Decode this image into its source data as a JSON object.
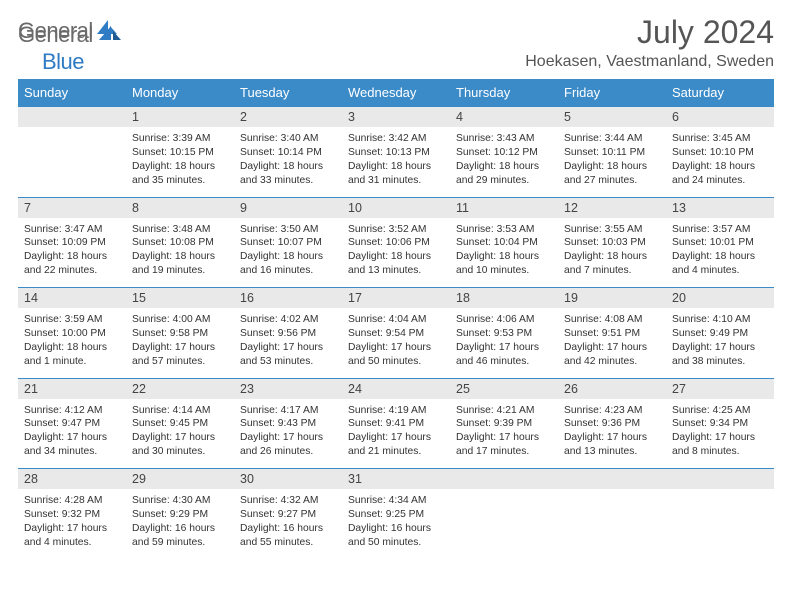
{
  "logo": {
    "general": "General",
    "blue": "Blue"
  },
  "title": "July 2024",
  "location": "Hoekasen, Vaestmanland, Sweden",
  "day_headers": [
    "Sunday",
    "Monday",
    "Tuesday",
    "Wednesday",
    "Thursday",
    "Friday",
    "Saturday"
  ],
  "colors": {
    "header_bg": "#3b8bc9",
    "header_text": "#ffffff",
    "daynum_bg": "#e9e9e9",
    "rule": "#3b8bc9",
    "logo_gray": "#6a6a6a",
    "logo_blue": "#2f7bc4",
    "title_color": "#555555",
    "body_text": "#333333"
  },
  "weeks": [
    [
      null,
      {
        "n": "1",
        "sunrise": "Sunrise: 3:39 AM",
        "sunset": "Sunset: 10:15 PM",
        "daylight": "Daylight: 18 hours and 35 minutes."
      },
      {
        "n": "2",
        "sunrise": "Sunrise: 3:40 AM",
        "sunset": "Sunset: 10:14 PM",
        "daylight": "Daylight: 18 hours and 33 minutes."
      },
      {
        "n": "3",
        "sunrise": "Sunrise: 3:42 AM",
        "sunset": "Sunset: 10:13 PM",
        "daylight": "Daylight: 18 hours and 31 minutes."
      },
      {
        "n": "4",
        "sunrise": "Sunrise: 3:43 AM",
        "sunset": "Sunset: 10:12 PM",
        "daylight": "Daylight: 18 hours and 29 minutes."
      },
      {
        "n": "5",
        "sunrise": "Sunrise: 3:44 AM",
        "sunset": "Sunset: 10:11 PM",
        "daylight": "Daylight: 18 hours and 27 minutes."
      },
      {
        "n": "6",
        "sunrise": "Sunrise: 3:45 AM",
        "sunset": "Sunset: 10:10 PM",
        "daylight": "Daylight: 18 hours and 24 minutes."
      }
    ],
    [
      {
        "n": "7",
        "sunrise": "Sunrise: 3:47 AM",
        "sunset": "Sunset: 10:09 PM",
        "daylight": "Daylight: 18 hours and 22 minutes."
      },
      {
        "n": "8",
        "sunrise": "Sunrise: 3:48 AM",
        "sunset": "Sunset: 10:08 PM",
        "daylight": "Daylight: 18 hours and 19 minutes."
      },
      {
        "n": "9",
        "sunrise": "Sunrise: 3:50 AM",
        "sunset": "Sunset: 10:07 PM",
        "daylight": "Daylight: 18 hours and 16 minutes."
      },
      {
        "n": "10",
        "sunrise": "Sunrise: 3:52 AM",
        "sunset": "Sunset: 10:06 PM",
        "daylight": "Daylight: 18 hours and 13 minutes."
      },
      {
        "n": "11",
        "sunrise": "Sunrise: 3:53 AM",
        "sunset": "Sunset: 10:04 PM",
        "daylight": "Daylight: 18 hours and 10 minutes."
      },
      {
        "n": "12",
        "sunrise": "Sunrise: 3:55 AM",
        "sunset": "Sunset: 10:03 PM",
        "daylight": "Daylight: 18 hours and 7 minutes."
      },
      {
        "n": "13",
        "sunrise": "Sunrise: 3:57 AM",
        "sunset": "Sunset: 10:01 PM",
        "daylight": "Daylight: 18 hours and 4 minutes."
      }
    ],
    [
      {
        "n": "14",
        "sunrise": "Sunrise: 3:59 AM",
        "sunset": "Sunset: 10:00 PM",
        "daylight": "Daylight: 18 hours and 1 minute."
      },
      {
        "n": "15",
        "sunrise": "Sunrise: 4:00 AM",
        "sunset": "Sunset: 9:58 PM",
        "daylight": "Daylight: 17 hours and 57 minutes."
      },
      {
        "n": "16",
        "sunrise": "Sunrise: 4:02 AM",
        "sunset": "Sunset: 9:56 PM",
        "daylight": "Daylight: 17 hours and 53 minutes."
      },
      {
        "n": "17",
        "sunrise": "Sunrise: 4:04 AM",
        "sunset": "Sunset: 9:54 PM",
        "daylight": "Daylight: 17 hours and 50 minutes."
      },
      {
        "n": "18",
        "sunrise": "Sunrise: 4:06 AM",
        "sunset": "Sunset: 9:53 PM",
        "daylight": "Daylight: 17 hours and 46 minutes."
      },
      {
        "n": "19",
        "sunrise": "Sunrise: 4:08 AM",
        "sunset": "Sunset: 9:51 PM",
        "daylight": "Daylight: 17 hours and 42 minutes."
      },
      {
        "n": "20",
        "sunrise": "Sunrise: 4:10 AM",
        "sunset": "Sunset: 9:49 PM",
        "daylight": "Daylight: 17 hours and 38 minutes."
      }
    ],
    [
      {
        "n": "21",
        "sunrise": "Sunrise: 4:12 AM",
        "sunset": "Sunset: 9:47 PM",
        "daylight": "Daylight: 17 hours and 34 minutes."
      },
      {
        "n": "22",
        "sunrise": "Sunrise: 4:14 AM",
        "sunset": "Sunset: 9:45 PM",
        "daylight": "Daylight: 17 hours and 30 minutes."
      },
      {
        "n": "23",
        "sunrise": "Sunrise: 4:17 AM",
        "sunset": "Sunset: 9:43 PM",
        "daylight": "Daylight: 17 hours and 26 minutes."
      },
      {
        "n": "24",
        "sunrise": "Sunrise: 4:19 AM",
        "sunset": "Sunset: 9:41 PM",
        "daylight": "Daylight: 17 hours and 21 minutes."
      },
      {
        "n": "25",
        "sunrise": "Sunrise: 4:21 AM",
        "sunset": "Sunset: 9:39 PM",
        "daylight": "Daylight: 17 hours and 17 minutes."
      },
      {
        "n": "26",
        "sunrise": "Sunrise: 4:23 AM",
        "sunset": "Sunset: 9:36 PM",
        "daylight": "Daylight: 17 hours and 13 minutes."
      },
      {
        "n": "27",
        "sunrise": "Sunrise: 4:25 AM",
        "sunset": "Sunset: 9:34 PM",
        "daylight": "Daylight: 17 hours and 8 minutes."
      }
    ],
    [
      {
        "n": "28",
        "sunrise": "Sunrise: 4:28 AM",
        "sunset": "Sunset: 9:32 PM",
        "daylight": "Daylight: 17 hours and 4 minutes."
      },
      {
        "n": "29",
        "sunrise": "Sunrise: 4:30 AM",
        "sunset": "Sunset: 9:29 PM",
        "daylight": "Daylight: 16 hours and 59 minutes."
      },
      {
        "n": "30",
        "sunrise": "Sunrise: 4:32 AM",
        "sunset": "Sunset: 9:27 PM",
        "daylight": "Daylight: 16 hours and 55 minutes."
      },
      {
        "n": "31",
        "sunrise": "Sunrise: 4:34 AM",
        "sunset": "Sunset: 9:25 PM",
        "daylight": "Daylight: 16 hours and 50 minutes."
      },
      null,
      null,
      null
    ]
  ]
}
